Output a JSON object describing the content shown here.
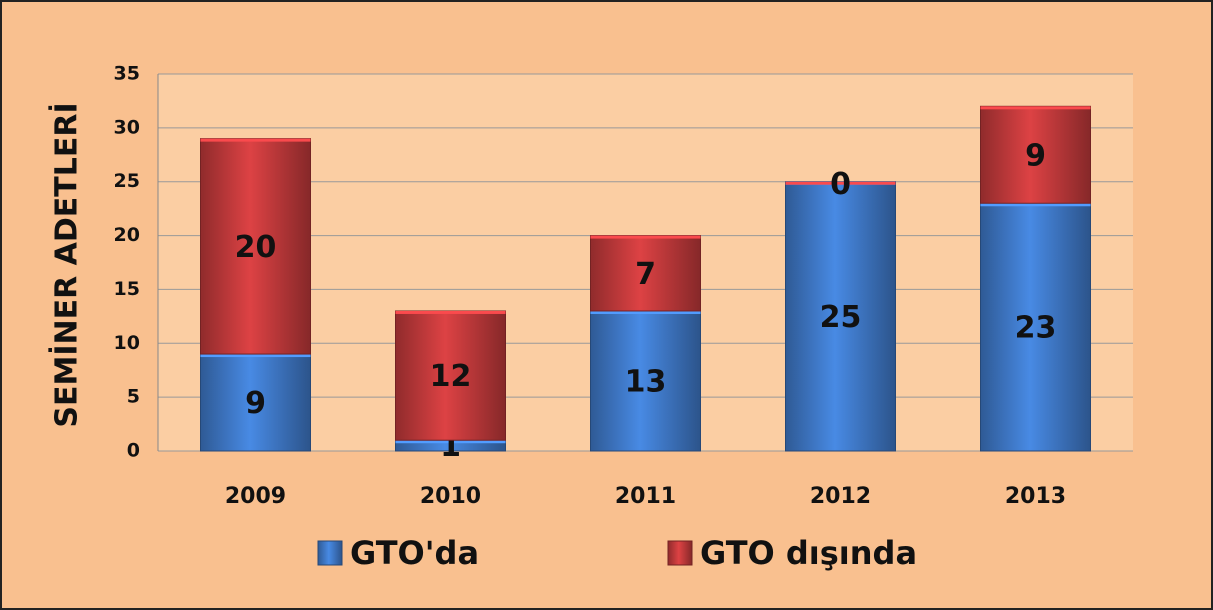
{
  "chart_data": {
    "type": "stacked_bar",
    "y_axis_label": "SEMİNER ADETLERİ",
    "categories": [
      "2009",
      "2010",
      "2011",
      "2012",
      "2013"
    ],
    "series": [
      {
        "name": "GTO'da",
        "color": "#3f78c6",
        "values": [
          9,
          1,
          13,
          25,
          23
        ]
      },
      {
        "name": "GTO dışında",
        "color": "#c0393b",
        "values": [
          20,
          12,
          7,
          0,
          9
        ]
      }
    ],
    "ylim": [
      0,
      35
    ],
    "yticks": [
      0,
      5,
      10,
      15,
      20,
      25,
      30,
      35
    ],
    "grid": true,
    "legend": "bottom"
  }
}
